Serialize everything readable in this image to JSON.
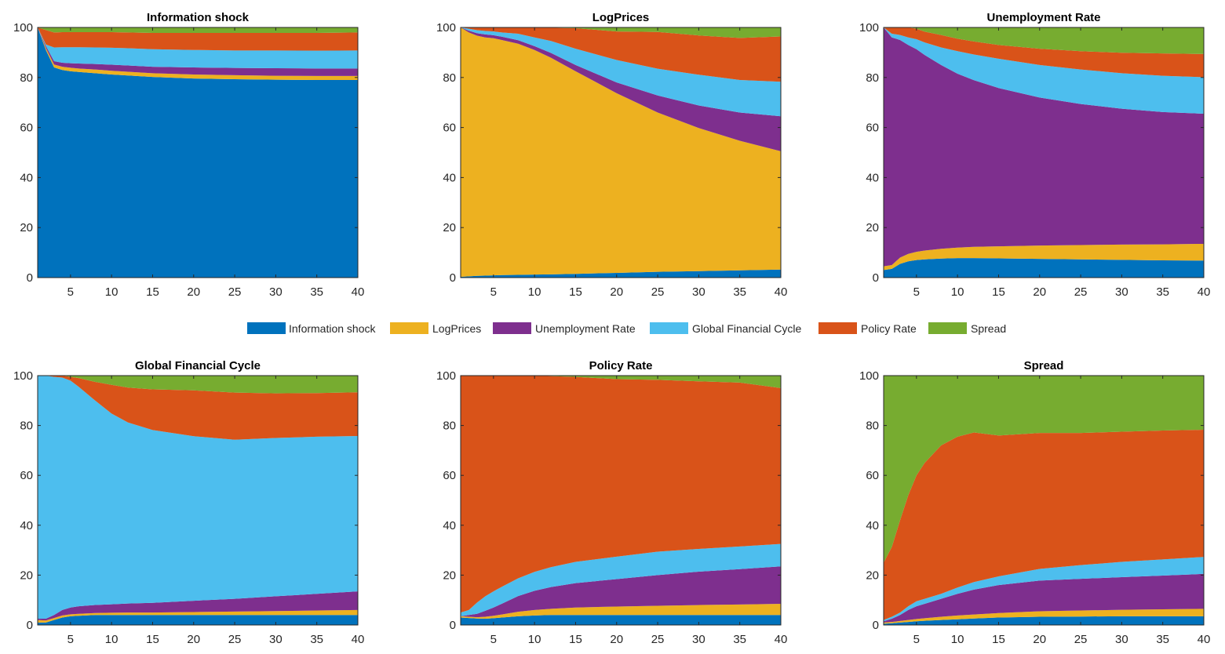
{
  "legend": {
    "items": [
      {
        "label": "Information shock",
        "color": "#0072BD"
      },
      {
        "label": "LogPrices",
        "color": "#EDB120"
      },
      {
        "label": "Unemployment Rate",
        "color": "#7E2F8E"
      },
      {
        "label": "Global Financial Cycle",
        "color": "#4DBEEE"
      },
      {
        "label": "Policy Rate",
        "color": "#D95319"
      },
      {
        "label": "Spread",
        "color": "#77AC30"
      }
    ]
  },
  "chart_data": [
    {
      "type": "area",
      "stacked": true,
      "title": "Information shock",
      "x": [
        1,
        2,
        3,
        4,
        5,
        6,
        8,
        10,
        12,
        15,
        20,
        25,
        30,
        35,
        40
      ],
      "xticks": [
        5,
        10,
        15,
        20,
        25,
        30,
        35,
        40
      ],
      "xlim": [
        1,
        40
      ],
      "yticks": [
        0,
        20,
        40,
        60,
        80,
        100
      ],
      "ylim": [
        0,
        100
      ],
      "series": [
        {
          "name": "Information shock",
          "values": [
            100,
            91,
            84,
            83,
            82.5,
            82.2,
            81.7,
            81.2,
            80.8,
            80.2,
            79.6,
            79.3,
            79.1,
            79.0,
            79.0
          ]
        },
        {
          "name": "LogPrices",
          "values": [
            0,
            0.8,
            1.2,
            1.3,
            1.4,
            1.4,
            1.5,
            1.5,
            1.5,
            1.5,
            1.6,
            1.6,
            1.6,
            1.6,
            1.6
          ]
        },
        {
          "name": "Unemployment Rate",
          "values": [
            0,
            0.8,
            1.3,
            1.6,
            1.8,
            2.0,
            2.2,
            2.4,
            2.5,
            2.6,
            2.8,
            2.9,
            3.0,
            3.0,
            3.0
          ]
        },
        {
          "name": "Global Financial Cycle",
          "values": [
            0,
            0.6,
            5.5,
            6.2,
            6.4,
            6.5,
            6.6,
            6.8,
            6.9,
            7.0,
            7.0,
            7.0,
            7.1,
            7.1,
            7.2
          ]
        },
        {
          "name": "Policy Rate",
          "values": [
            0,
            5.8,
            6.0,
            6.0,
            6.0,
            6.0,
            6.1,
            6.2,
            6.3,
            6.5,
            6.8,
            7.0,
            7.0,
            7.1,
            7.2
          ]
        },
        {
          "name": "Spread",
          "values": [
            0,
            1.0,
            2.0,
            1.9,
            1.9,
            1.9,
            1.9,
            1.9,
            2.0,
            2.2,
            2.2,
            2.2,
            2.2,
            2.2,
            2.0
          ]
        }
      ]
    },
    {
      "type": "area",
      "stacked": true,
      "title": "LogPrices",
      "x": [
        1,
        2,
        3,
        4,
        5,
        6,
        8,
        10,
        12,
        15,
        20,
        25,
        30,
        35,
        40
      ],
      "xticks": [
        5,
        10,
        15,
        20,
        25,
        30,
        35,
        40
      ],
      "xlim": [
        1,
        40
      ],
      "yticks": [
        0,
        20,
        40,
        60,
        80,
        100
      ],
      "ylim": [
        0,
        100
      ],
      "series": [
        {
          "name": "Information shock",
          "values": [
            0.3,
            0.5,
            0.7,
            0.8,
            0.9,
            1.0,
            1.1,
            1.2,
            1.3,
            1.5,
            1.9,
            2.3,
            2.6,
            2.9,
            3.2
          ]
        },
        {
          "name": "LogPrices",
          "values": [
            99.7,
            97.5,
            96.0,
            95.2,
            94.8,
            94.0,
            92.4,
            89.8,
            86.6,
            81.0,
            71.8,
            63.7,
            57.2,
            51.8,
            47.3
          ]
        },
        {
          "name": "Unemployment Rate",
          "values": [
            0,
            0.7,
            1.0,
            1.2,
            1.2,
            1.3,
            1.4,
            1.5,
            1.9,
            2.5,
            4.3,
            6.8,
            9.0,
            11.3,
            14.0
          ]
        },
        {
          "name": "Global Financial Cycle",
          "values": [
            0,
            0.8,
            1.2,
            1.4,
            1.5,
            1.7,
            2.6,
            3.5,
            4.8,
            6.5,
            9.0,
            10.7,
            12.3,
            13.0,
            13.8
          ]
        },
        {
          "name": "Policy Rate",
          "values": [
            0,
            0.4,
            1.0,
            1.3,
            1.5,
            1.9,
            2.4,
            3.9,
            5.3,
            8.2,
            11.4,
            14.7,
            15.7,
            16.8,
            18.1
          ]
        },
        {
          "name": "Spread",
          "values": [
            0,
            0.1,
            0.1,
            0.1,
            0.1,
            0.1,
            0.1,
            0.1,
            0.1,
            0.3,
            1.6,
            1.8,
            3.2,
            4.2,
            3.6
          ]
        }
      ]
    },
    {
      "type": "area",
      "stacked": true,
      "title": "Unemployment Rate",
      "x": [
        1,
        2,
        3,
        4,
        5,
        6,
        8,
        10,
        12,
        15,
        20,
        25,
        30,
        35,
        40
      ],
      "xticks": [
        5,
        10,
        15,
        20,
        25,
        30,
        35,
        40
      ],
      "xlim": [
        1,
        40
      ],
      "yticks": [
        0,
        20,
        40,
        60,
        80,
        100
      ],
      "ylim": [
        0,
        100
      ],
      "series": [
        {
          "name": "Information shock",
          "values": [
            3.0,
            3.5,
            5.5,
            6.5,
            7.0,
            7.3,
            7.6,
            7.8,
            7.8,
            7.7,
            7.5,
            7.3,
            7.1,
            6.9,
            6.8
          ]
        },
        {
          "name": "LogPrices",
          "values": [
            1.5,
            1.5,
            2.5,
            3.0,
            3.3,
            3.5,
            3.9,
            4.2,
            4.5,
            4.8,
            5.3,
            5.7,
            6.1,
            6.4,
            6.7
          ]
        },
        {
          "name": "Unemployment Rate",
          "values": [
            95.5,
            91.0,
            87.0,
            83.5,
            81.0,
            78.2,
            73.5,
            69.5,
            66.6,
            63.3,
            59.2,
            56.4,
            54.3,
            52.9,
            52.0
          ]
        },
        {
          "name": "Global Financial Cycle",
          "values": [
            0,
            1.5,
            2.0,
            3.0,
            4.0,
            5.0,
            7.0,
            9.0,
            10.3,
            11.7,
            13.0,
            13.8,
            14.2,
            14.5,
            14.6
          ]
        },
        {
          "name": "Policy Rate",
          "values": [
            0,
            2.5,
            3.0,
            4.0,
            4.2,
            4.3,
            5.0,
            5.0,
            5.2,
            5.5,
            6.5,
            7.3,
            8.2,
            8.9,
            9.3
          ]
        },
        {
          "name": "Spread",
          "values": [
            0,
            0,
            0,
            0,
            0.5,
            1.7,
            3.0,
            4.5,
            5.6,
            7.0,
            8.5,
            9.5,
            10.1,
            10.4,
            10.6
          ]
        }
      ]
    },
    {
      "type": "area",
      "stacked": true,
      "title": "Global Financial Cycle",
      "x": [
        1,
        2,
        3,
        4,
        5,
        6,
        8,
        10,
        12,
        15,
        20,
        25,
        30,
        35,
        40
      ],
      "xticks": [
        5,
        10,
        15,
        20,
        25,
        30,
        35,
        40
      ],
      "xlim": [
        1,
        40
      ],
      "yticks": [
        0,
        20,
        40,
        60,
        80,
        100
      ],
      "ylim": [
        0,
        100
      ],
      "series": [
        {
          "name": "Information shock",
          "values": [
            1.0,
            1.0,
            2.0,
            3.0,
            3.5,
            3.7,
            4.0,
            4.0,
            4.0,
            4.0,
            4.0,
            4.0,
            4.0,
            4.0,
            4.0
          ]
        },
        {
          "name": "LogPrices",
          "values": [
            1.0,
            0.8,
            0.8,
            0.8,
            0.8,
            0.8,
            0.8,
            0.9,
            1.0,
            1.0,
            1.2,
            1.4,
            1.6,
            1.8,
            2.0
          ]
        },
        {
          "name": "Unemployment Rate",
          "values": [
            0.5,
            0.7,
            1.2,
            2.2,
            2.7,
            3.0,
            3.2,
            3.4,
            3.6,
            3.9,
            4.5,
            5.1,
            5.9,
            6.7,
            7.5
          ]
        },
        {
          "name": "Global Financial Cycle",
          "values": [
            97.5,
            97.5,
            95.5,
            93.2,
            91.0,
            88.0,
            82.0,
            76.5,
            72.6,
            69.3,
            66.0,
            63.8,
            63.5,
            63.0,
            62.3
          ]
        },
        {
          "name": "Policy Rate",
          "values": [
            0,
            0,
            0.5,
            0.8,
            1.5,
            3.5,
            7.5,
            11.5,
            14.0,
            16.3,
            18.4,
            18.9,
            17.9,
            17.5,
            17.5
          ]
        },
        {
          "name": "Spread",
          "values": [
            0,
            0,
            0,
            0,
            0.5,
            1.0,
            2.5,
            3.7,
            4.8,
            5.5,
            5.9,
            6.8,
            7.1,
            7.0,
            6.7
          ]
        }
      ]
    },
    {
      "type": "area",
      "stacked": true,
      "title": "Policy Rate",
      "x": [
        1,
        2,
        3,
        4,
        5,
        6,
        8,
        10,
        12,
        15,
        20,
        25,
        30,
        35,
        40
      ],
      "xticks": [
        5,
        10,
        15,
        20,
        25,
        30,
        35,
        40
      ],
      "xlim": [
        1,
        40
      ],
      "yticks": [
        0,
        20,
        40,
        60,
        80,
        100
      ],
      "ylim": [
        0,
        100
      ],
      "series": [
        {
          "name": "Information shock",
          "values": [
            3.0,
            2.8,
            2.6,
            2.5,
            2.7,
            3.0,
            3.5,
            3.8,
            4.0,
            4.0,
            4.0,
            4.0,
            4.0,
            4.0,
            4.0
          ]
        },
        {
          "name": "LogPrices",
          "values": [
            0.5,
            0.5,
            0.5,
            0.8,
            1.0,
            1.2,
            1.8,
            2.2,
            2.5,
            3.0,
            3.4,
            3.7,
            4.0,
            4.2,
            4.5
          ]
        },
        {
          "name": "Unemployment Rate",
          "values": [
            0,
            0.7,
            1.4,
            2.4,
            3.3,
            4.3,
            6.3,
            7.7,
            8.7,
            9.8,
            11.0,
            12.3,
            13.4,
            14.2,
            15.0
          ]
        },
        {
          "name": "Global Financial Cycle",
          "values": [
            1.5,
            2.0,
            4.5,
            5.8,
            6.5,
            6.8,
            7.1,
            7.6,
            8.0,
            8.5,
            9.0,
            9.4,
            9.1,
            9.1,
            9.0
          ]
        },
        {
          "name": "Policy Rate",
          "values": [
            95.0,
            94.0,
            91.0,
            88.5,
            86.4,
            84.7,
            81.3,
            78.7,
            76.6,
            74.2,
            71.2,
            68.9,
            67.2,
            65.7,
            62.5
          ]
        },
        {
          "name": "Spread",
          "values": [
            0,
            0,
            0,
            0,
            0.1,
            0,
            0,
            0,
            0.2,
            0.5,
            1.4,
            1.7,
            2.3,
            2.8,
            5.0
          ]
        }
      ]
    },
    {
      "type": "area",
      "stacked": true,
      "title": "Spread",
      "x": [
        1,
        2,
        3,
        4,
        5,
        6,
        8,
        10,
        12,
        15,
        20,
        25,
        30,
        35,
        40
      ],
      "xticks": [
        5,
        10,
        15,
        20,
        25,
        30,
        35,
        40
      ],
      "xlim": [
        1,
        40
      ],
      "yticks": [
        0,
        20,
        40,
        60,
        80,
        100
      ],
      "ylim": [
        0,
        100
      ],
      "series": [
        {
          "name": "Information shock",
          "values": [
            0.5,
            0.7,
            1.0,
            1.2,
            1.5,
            1.7,
            2.0,
            2.3,
            2.6,
            3.0,
            3.3,
            3.4,
            3.5,
            3.5,
            3.5
          ]
        },
        {
          "name": "LogPrices",
          "values": [
            0.5,
            0.5,
            0.6,
            0.8,
            0.9,
            1.0,
            1.3,
            1.5,
            1.6,
            1.8,
            2.2,
            2.4,
            2.6,
            2.8,
            3.0
          ]
        },
        {
          "name": "Unemployment Rate",
          "values": [
            0.5,
            1.3,
            2.4,
            4.0,
            5.1,
            5.8,
            7.2,
            8.7,
            10.0,
            11.2,
            12.3,
            12.7,
            13.1,
            13.5,
            14.0
          ]
        },
        {
          "name": "Global Financial Cycle",
          "values": [
            0.5,
            0.8,
            1.0,
            1.5,
            2.0,
            2.0,
            2.0,
            2.5,
            3.0,
            3.5,
            4.7,
            5.5,
            6.1,
            6.5,
            6.8
          ]
        },
        {
          "name": "Policy Rate",
          "values": [
            23.0,
            28.0,
            37.0,
            44.5,
            50.5,
            54.5,
            59.5,
            60.5,
            60.0,
            56.5,
            54.5,
            53.0,
            52.2,
            51.7,
            51.0
          ]
        },
        {
          "name": "Spread",
          "values": [
            75.0,
            68.7,
            58.0,
            48.0,
            40.0,
            35.0,
            28.0,
            24.5,
            22.8,
            24.0,
            23.0,
            23.0,
            22.5,
            22.0,
            21.7
          ]
        }
      ]
    }
  ]
}
